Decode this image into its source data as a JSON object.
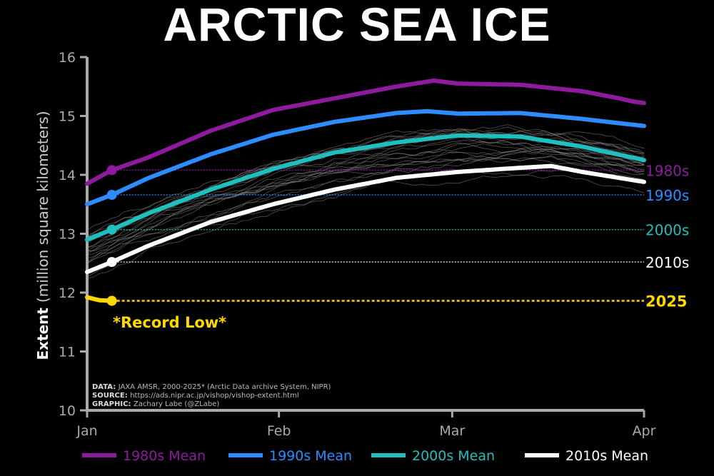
{
  "title": "ARCTIC SEA ICE",
  "chart_data": {
    "type": "line",
    "title": "ARCTIC SEA ICE",
    "xlabel": "",
    "ylabel_bold": "Extent",
    "ylabel_rest": "(million square kilometers)",
    "x_units": "day of year",
    "xlim": [
      0,
      90
    ],
    "ylim": [
      10,
      16
    ],
    "yticks": [
      10,
      11,
      12,
      13,
      14,
      15,
      16
    ],
    "xticks": [
      {
        "day": 0,
        "label": "Jan"
      },
      {
        "day": 31,
        "label": "Feb"
      },
      {
        "day": 59,
        "label": "Mar"
      },
      {
        "day": 90,
        "label": "Apr"
      }
    ],
    "grid": false,
    "legend_position": "bottom",
    "marker_day": 4,
    "series": [
      {
        "name": "1980s Mean",
        "label": "1980s",
        "color": "#8e1a9e",
        "x": [
          0,
          4,
          10,
          20,
          30,
          40,
          50,
          56,
          60,
          70,
          80,
          86,
          88,
          90
        ],
        "y": [
          13.85,
          14.08,
          14.3,
          14.75,
          15.1,
          15.3,
          15.5,
          15.6,
          15.55,
          15.53,
          15.42,
          15.3,
          15.25,
          15.22
        ]
      },
      {
        "name": "1990s Mean",
        "label": "1990s",
        "color": "#2d8cff",
        "x": [
          0,
          4,
          10,
          20,
          30,
          40,
          50,
          55,
          60,
          70,
          80,
          90
        ],
        "y": [
          13.5,
          13.66,
          13.95,
          14.35,
          14.68,
          14.9,
          15.05,
          15.08,
          15.04,
          15.05,
          14.95,
          14.83
        ]
      },
      {
        "name": "2000s Mean",
        "label": "2000s",
        "color": "#1fbfbf",
        "x": [
          0,
          4,
          10,
          20,
          30,
          40,
          50,
          60,
          70,
          80,
          90
        ],
        "y": [
          12.9,
          13.07,
          13.35,
          13.75,
          14.1,
          14.38,
          14.55,
          14.67,
          14.65,
          14.48,
          14.25
        ]
      },
      {
        "name": "2010s Mean",
        "label": "2010s",
        "color": "#ffffff",
        "x": [
          0,
          4,
          10,
          20,
          30,
          40,
          50,
          60,
          70,
          75,
          80,
          90
        ],
        "y": [
          12.35,
          12.52,
          12.8,
          13.2,
          13.5,
          13.75,
          13.95,
          14.05,
          14.12,
          14.15,
          14.05,
          13.88
        ]
      },
      {
        "name": "2025",
        "label": "2025",
        "color": "#ffd700",
        "x": [
          0,
          2,
          4
        ],
        "y": [
          11.92,
          11.87,
          11.86
        ]
      }
    ],
    "annotation": "*Record Low*",
    "credits": [
      {
        "label": "DATA:",
        "text": "JAXA AMSR, 2000-2025* (Arctic Data archive System, NIPR)"
      },
      {
        "label": "SOURCE:",
        "text": "https://ads.nipr.ac.jp/vishop/vishop-extent.html"
      },
      {
        "label": "GRAPHIC:",
        "text": "Zachary Labe (@ZLabe)"
      }
    ]
  }
}
